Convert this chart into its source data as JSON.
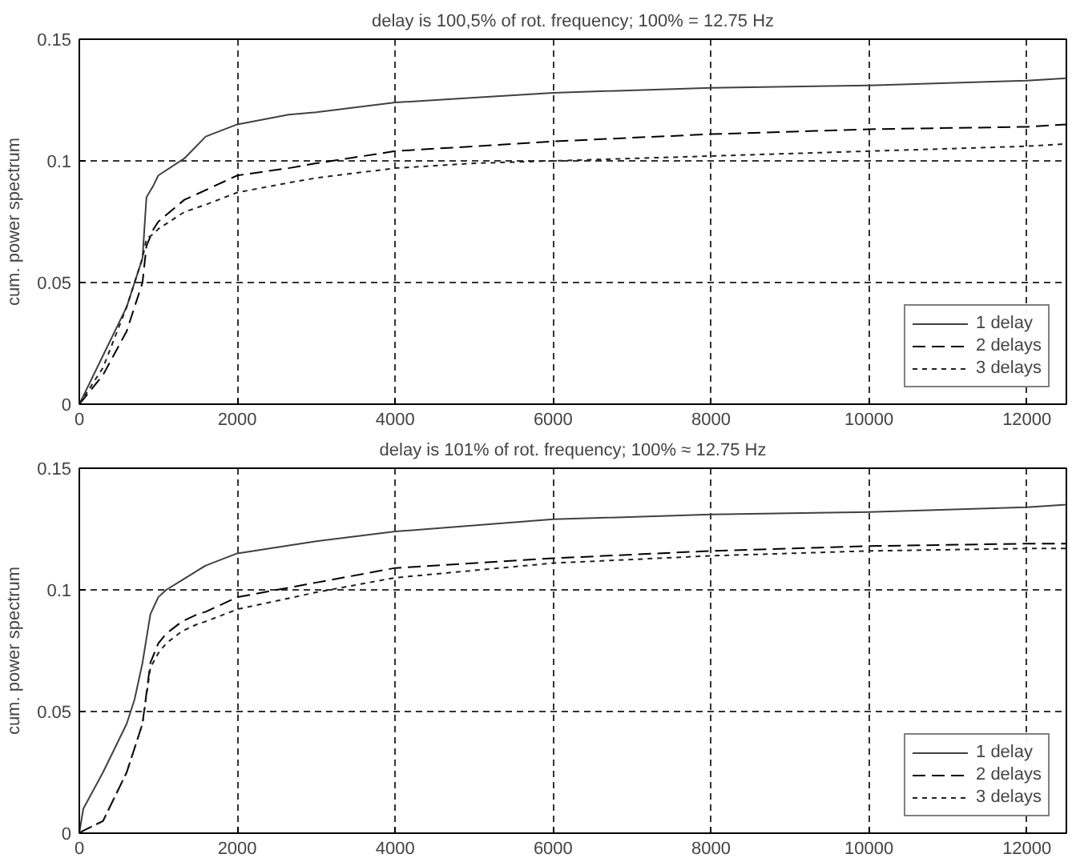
{
  "chart_data": [
    {
      "type": "line",
      "title": "delay is 100,5% of rot. frequency; 100% = 12.75 Hz",
      "ylabel": "cum. power spectrum",
      "xlim": [
        0,
        12500
      ],
      "ylim": [
        0,
        0.15
      ],
      "xticks": [
        0,
        2000,
        4000,
        6000,
        8000,
        10000,
        12000
      ],
      "yticks": [
        0,
        0.05,
        0.1,
        0.15
      ],
      "grid": true,
      "legend": "bottom right",
      "x": [
        0,
        300,
        600,
        800,
        850,
        940,
        1000,
        1330,
        1600,
        2000,
        2650,
        3000,
        4000,
        5000,
        6000,
        8000,
        10000,
        12000,
        12500
      ],
      "series": [
        {
          "name": "1 delay",
          "color": "#404040",
          "line_style": "solid",
          "values": [
            0,
            0.02,
            0.04,
            0.06,
            0.085,
            0.09,
            0.094,
            0.101,
            0.11,
            0.115,
            0.119,
            0.12,
            0.124,
            0.126,
            0.128,
            0.13,
            0.131,
            0.133,
            0.134
          ]
        },
        {
          "name": "2 delays",
          "color": "#000000",
          "line_style": "dashed",
          "values": [
            0,
            0.012,
            0.03,
            0.05,
            0.065,
            0.072,
            0.075,
            0.084,
            0.088,
            0.094,
            0.097,
            0.099,
            0.104,
            0.106,
            0.108,
            0.111,
            0.113,
            0.114,
            0.115
          ]
        },
        {
          "name": "3 delays",
          "color": "#202020",
          "line_style": "dotted",
          "values": [
            0,
            0.015,
            0.04,
            0.06,
            0.068,
            0.07,
            0.072,
            0.079,
            0.082,
            0.087,
            0.091,
            0.093,
            0.097,
            0.099,
            0.1,
            0.102,
            0.104,
            0.106,
            0.107
          ]
        }
      ]
    },
    {
      "type": "line",
      "title": "delay is 101% of rot. frequency; 100% ≈ 12.75 Hz",
      "ylabel": "cum. power spectrum",
      "xlim": [
        0,
        12500
      ],
      "ylim": [
        0,
        0.15
      ],
      "xticks": [
        0,
        2000,
        4000,
        6000,
        8000,
        10000,
        12000
      ],
      "yticks": [
        0,
        0.05,
        0.1,
        0.15
      ],
      "grid": true,
      "legend": "bottom right",
      "x": [
        0,
        50,
        300,
        600,
        700,
        800,
        900,
        1000,
        1100,
        1300,
        1500,
        1600,
        2000,
        3000,
        4000,
        6000,
        8000,
        10000,
        12000,
        12500
      ],
      "series": [
        {
          "name": "1 delay",
          "color": "#404040",
          "line_style": "solid",
          "values": [
            0,
            0.01,
            0.025,
            0.045,
            0.055,
            0.07,
            0.09,
            0.097,
            0.1,
            0.104,
            0.108,
            0.11,
            0.115,
            0.12,
            0.124,
            0.129,
            0.131,
            0.132,
            0.134,
            0.135
          ]
        },
        {
          "name": "2 delays",
          "color": "#000000",
          "line_style": "dashed",
          "values": [
            0,
            0.001,
            0.005,
            0.025,
            0.035,
            0.045,
            0.07,
            0.078,
            0.082,
            0.087,
            0.09,
            0.091,
            0.097,
            0.103,
            0.109,
            0.113,
            0.116,
            0.118,
            0.119,
            0.119
          ]
        },
        {
          "name": "3 delays",
          "color": "#202020",
          "line_style": "dotted",
          "values": [
            0,
            0.001,
            0.005,
            0.025,
            0.035,
            0.045,
            0.068,
            0.074,
            0.078,
            0.083,
            0.086,
            0.087,
            0.092,
            0.099,
            0.105,
            0.111,
            0.114,
            0.116,
            0.117,
            0.117
          ]
        }
      ]
    }
  ]
}
